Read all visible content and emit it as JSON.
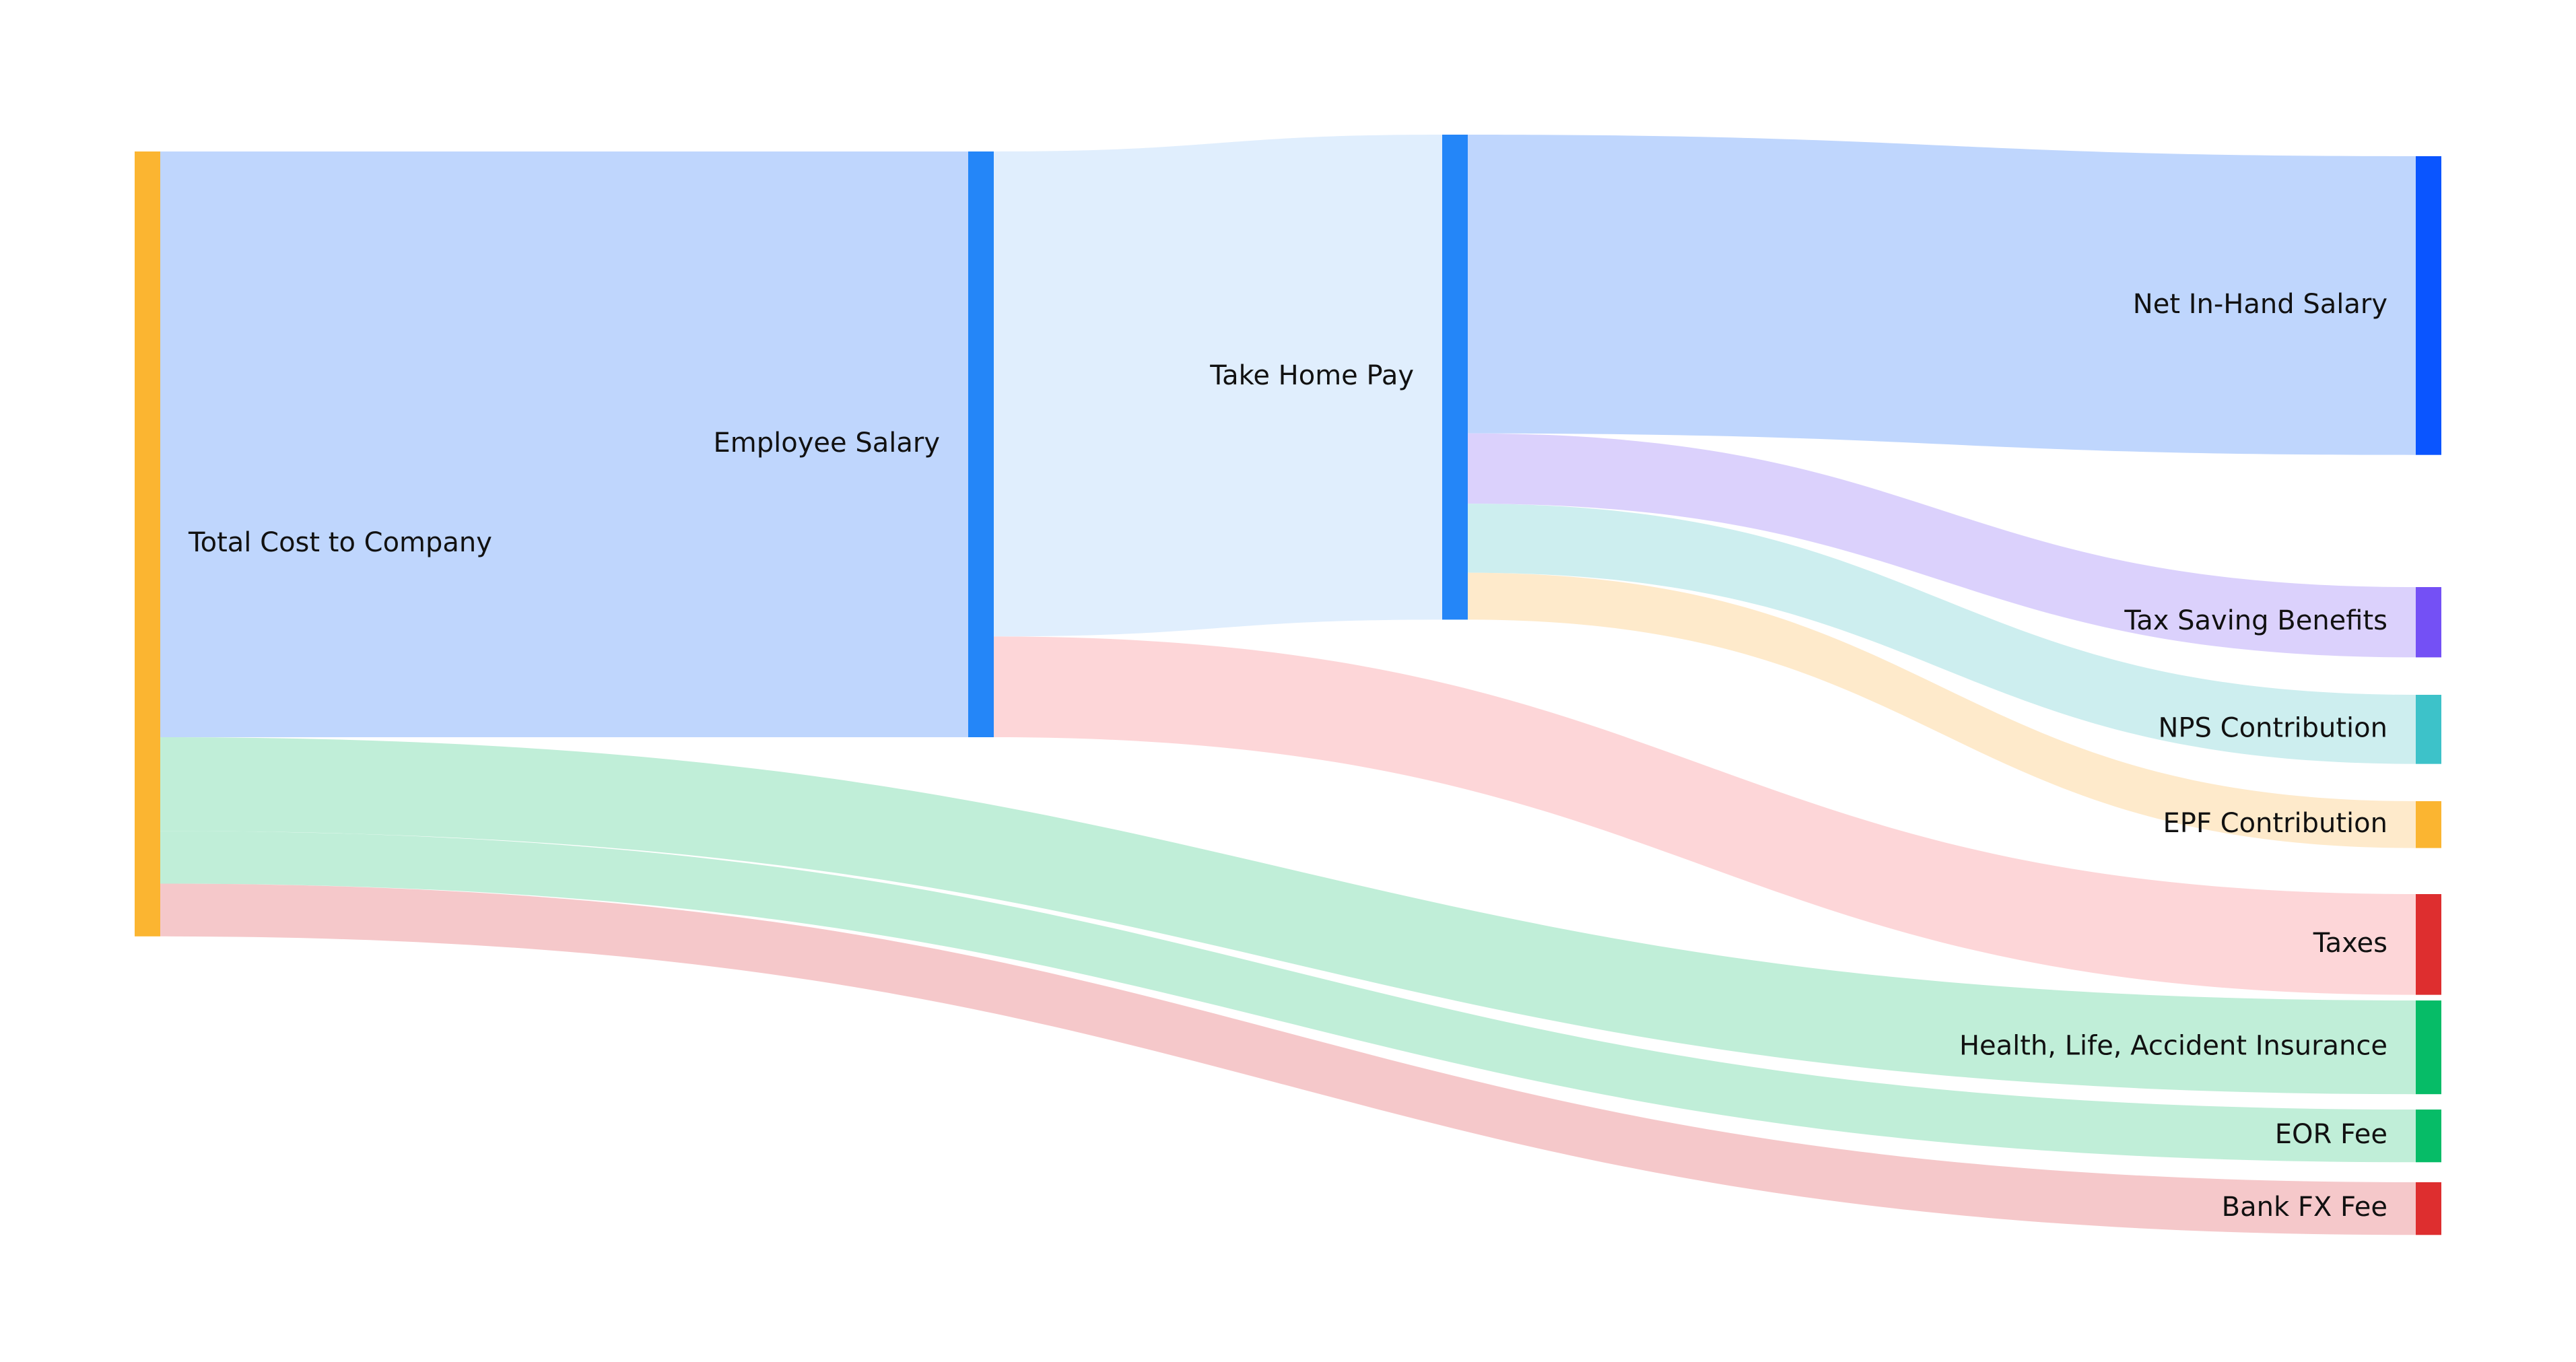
{
  "nodes": [
    {
      "id": "total",
      "label": "Total Cost to Company",
      "color": "#FBB531"
    },
    {
      "id": "salary",
      "label": "Employee Salary",
      "color": "#2486F8"
    },
    {
      "id": "takehome",
      "label": "Take Home Pay",
      "color": "#2486F8"
    },
    {
      "id": "net",
      "label": "Net In-Hand Salary",
      "color": "#0A55FF"
    },
    {
      "id": "taxsaving",
      "label": "Tax Saving Benefits",
      "color": "#7450F5"
    },
    {
      "id": "nps",
      "label": "NPS Contribution",
      "color": "#3DC2C9"
    },
    {
      "id": "epf",
      "label": "EPF Contribution",
      "color": "#FBB531"
    },
    {
      "id": "taxes",
      "label": "Taxes",
      "color": "#DE2E2F"
    },
    {
      "id": "insurance",
      "label": "Health, Life, Accident Insurance",
      "color": "#06BC67"
    },
    {
      "id": "eor",
      "label": "EOR Fee",
      "color": "#06BC67"
    },
    {
      "id": "bankfx",
      "label": "Bank FX Fee",
      "color": "#DE2E2F"
    }
  ],
  "links": [
    {
      "source": "total",
      "target": "salary",
      "value": 1000,
      "color": "#BFD6FD"
    },
    {
      "source": "total",
      "target": "insurance",
      "value": 160,
      "color": "#C0EED8"
    },
    {
      "source": "total",
      "target": "eor",
      "value": 90,
      "color": "#C0EED8"
    },
    {
      "source": "total",
      "target": "bankfx",
      "value": 90,
      "color": "#F5C8CA"
    },
    {
      "source": "salary",
      "target": "takehome",
      "value": 828,
      "color": "#E0EEFD"
    },
    {
      "source": "salary",
      "target": "taxes",
      "value": 172,
      "color": "#FDD6D8"
    },
    {
      "source": "takehome",
      "target": "net",
      "value": 510,
      "color": "#BFD6FD"
    },
    {
      "source": "takehome",
      "target": "taxsaving",
      "value": 120,
      "color": "#DBD1FC"
    },
    {
      "source": "takehome",
      "target": "nps",
      "value": 118,
      "color": "#CDEEEF"
    },
    {
      "source": "takehome",
      "target": "epf",
      "value": 80,
      "color": "#FEEACB"
    }
  ]
}
